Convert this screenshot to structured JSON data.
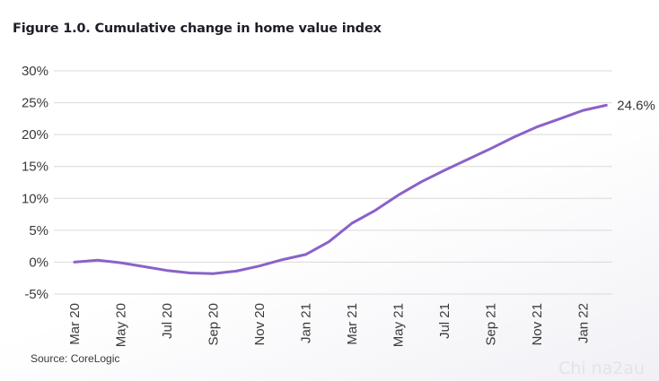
{
  "title": "Figure 1.0. Cumulative change in home value index",
  "source": "Source: CoreLogic",
  "watermark": "Chi na2au",
  "colors": {
    "line": "#8a62c8",
    "grid": "#d9d9d9",
    "text": "#3a3a3a"
  },
  "chart_data": {
    "type": "line",
    "title": "Figure 1.0. Cumulative change in home value index",
    "xlabel": "",
    "ylabel": "",
    "ylim": [
      -5,
      30
    ],
    "yticks": [
      -5,
      0,
      5,
      10,
      15,
      20,
      25,
      30
    ],
    "ytick_labels": [
      "-5%",
      "0%",
      "5%",
      "10%",
      "15%",
      "20%",
      "25%",
      "30%"
    ],
    "xtick_labels": [
      "Mar 20",
      "May 20",
      "Jul 20",
      "Sep 20",
      "Nov 20",
      "Jan 21",
      "Mar 21",
      "May 21",
      "Jul 21",
      "Sep 21",
      "Nov 21",
      "Jan 22"
    ],
    "grid": true,
    "legend": "none",
    "end_label": "24.6%",
    "series": [
      {
        "x": [
          "Mar 20",
          "Apr 20",
          "May 20",
          "Jun 20",
          "Jul 20",
          "Aug 20",
          "Sep 20",
          "Oct 20",
          "Nov 20",
          "Dec 20",
          "Jan 21",
          "Feb 21",
          "Mar 21",
          "Apr 21",
          "May 21",
          "Jun 21",
          "Jul 21",
          "Aug 21",
          "Sep 21",
          "Oct 21",
          "Nov 21",
          "Dec 21",
          "Jan 22",
          "Feb 22"
        ],
        "values": [
          0.0,
          0.3,
          -0.1,
          -0.7,
          -1.3,
          -1.7,
          -1.8,
          -1.4,
          -0.6,
          0.4,
          1.2,
          3.2,
          6.1,
          8.1,
          10.5,
          12.6,
          14.4,
          16.1,
          17.8,
          19.6,
          21.2,
          22.5,
          23.8,
          24.6
        ]
      }
    ]
  }
}
